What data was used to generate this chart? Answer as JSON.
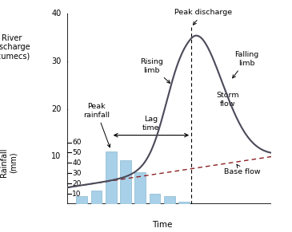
{
  "right_ylabel": "River\ndischarge\n(cumecs)",
  "left_ylabel": "Rainfall\n(mm)",
  "xlabel": "Time",
  "discharge_ticks": [
    10,
    20,
    30,
    40
  ],
  "rainfall_ticks": [
    10,
    20,
    30,
    40,
    50,
    60
  ],
  "bar_x": [
    1,
    2,
    3,
    4,
    5,
    6,
    7,
    8
  ],
  "bar_heights_mm": [
    8,
    13,
    51,
    43,
    31,
    10,
    8,
    2
  ],
  "bar_color": "#a8d0e8",
  "bar_edgecolor": "#8ab8d0",
  "hydrograph_color": "#4a4a5a",
  "baseflow_color": "#8B2020",
  "peak_x": 8.5,
  "base_start_cumecs": 3.5,
  "base_end_cumecs": 10.0,
  "fig_bg": "#ffffff",
  "xlim": [
    0,
    14
  ],
  "ylim_cumecs": [
    0,
    40
  ],
  "ylim_mm": [
    0,
    65
  ]
}
